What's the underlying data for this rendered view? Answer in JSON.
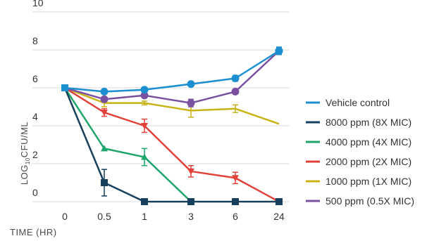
{
  "chart_data": {
    "type": "line",
    "categories": [
      "0",
      "0.5",
      "1",
      "3",
      "6",
      "24"
    ],
    "xlabel": "TIME (HR)",
    "ylabel": {
      "prefix": "LOG",
      "subscript": "10",
      "suffix": "CFU/ML"
    },
    "ylim": [
      0,
      10
    ],
    "yticks": [
      "0",
      "2",
      "4",
      "6",
      "8",
      "10"
    ],
    "grid": true,
    "legend_position": "right",
    "series": [
      {
        "name": "Vehicle control",
        "color": "#1b8fd0",
        "marker": "circle",
        "values": [
          6.0,
          5.8,
          5.9,
          6.2,
          6.5,
          7.95
        ],
        "errors": [
          0,
          0.1,
          0.1,
          0.05,
          0.15,
          0.2
        ]
      },
      {
        "name": "8000 ppm (8X MIC)",
        "color": "#17405e",
        "marker": "square",
        "values": [
          6.0,
          1.0,
          0.0,
          0.0,
          0.0,
          0.0
        ],
        "errors": [
          0,
          0.7,
          0,
          0,
          0,
          0
        ]
      },
      {
        "name": "4000 ppm (4X MIC)",
        "color": "#1fa66b",
        "marker": "triangle",
        "values": [
          6.0,
          2.8,
          2.35,
          0.0,
          null,
          null
        ],
        "errors": [
          0,
          0,
          0.45,
          0,
          0,
          0
        ]
      },
      {
        "name": "2000 ppm (2X MIC)",
        "color": "#e2413a",
        "marker": "triangle-down",
        "values": [
          6.0,
          4.7,
          4.0,
          1.6,
          1.25,
          0.0
        ],
        "errors": [
          0,
          0.2,
          0.35,
          0.3,
          0.3,
          0
        ]
      },
      {
        "name": "1000 ppm (1X MIC)",
        "color": "#c9b418",
        "marker": "none",
        "values": [
          6.0,
          5.2,
          5.2,
          4.8,
          4.9,
          4.1
        ],
        "errors": [
          0,
          0.2,
          0.1,
          0.35,
          0.2,
          0
        ]
      },
      {
        "name": "500 ppm (0.5X MIC)",
        "color": "#7a51a1",
        "marker": "circle",
        "values": [
          6.0,
          5.4,
          5.6,
          5.2,
          5.8,
          7.95
        ],
        "errors": [
          0,
          0.1,
          0.1,
          0.2,
          0,
          0.15
        ]
      }
    ]
  }
}
